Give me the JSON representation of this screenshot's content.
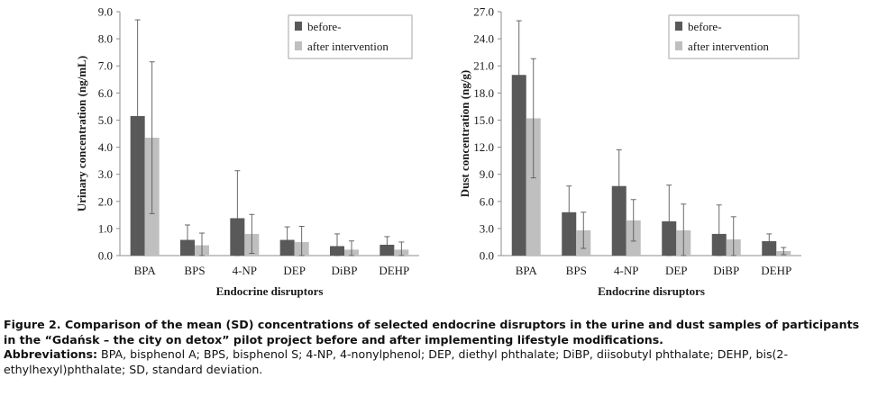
{
  "caption": {
    "title": "Figure 2. Comparison of the mean (SD) concentrations of selected endocrine disruptors in the urine and dust samples of participants in the “Gdańsk – the city on detox” pilot project before and after implementing lifestyle modifications.",
    "abbreviations_label": "Abbreviations:",
    "abbreviations_text": " BPA, bisphenol A; BPS, bisphenol S; 4-NP, 4-nonylphenol; DEP, diethyl phthalate; DiBP, diisobutyl phthalate; DEHP, bis(2-ethylhexyl)phthalate; SD, standard deviation."
  },
  "colors": {
    "before": "#595959",
    "after": "#bfbfbf",
    "error": "#595959",
    "axis": "#8c8c8c"
  },
  "chart_data": [
    {
      "type": "bar",
      "ylabel": "Urinary concentration (ng/mL)",
      "xlabel": "Endocrine disruptors",
      "ylim": [
        0,
        9
      ],
      "yticks": [
        "0.0",
        "1.0",
        "2.0",
        "3.0",
        "4.0",
        "5.0",
        "6.0",
        "7.0",
        "8.0",
        "9.0"
      ],
      "grid": false,
      "legend_position": "top-right",
      "categories": [
        "BPA",
        "BPS",
        "4-NP",
        "DEP",
        "DiBP",
        "DEHP"
      ],
      "series": [
        {
          "name": "before-",
          "values": [
            5.15,
            0.58,
            1.38,
            0.58,
            0.35,
            0.4
          ],
          "sd": [
            3.55,
            0.55,
            1.75,
            0.48,
            0.45,
            0.3
          ]
        },
        {
          "name": "after intervention",
          "values": [
            4.35,
            0.38,
            0.8,
            0.5,
            0.22,
            0.22
          ],
          "sd": [
            2.8,
            0.45,
            0.72,
            0.58,
            0.32,
            0.28
          ]
        }
      ]
    },
    {
      "type": "bar",
      "ylabel": "Dust concentration (ng/g)",
      "xlabel": "Endocrine disruptors",
      "ylim": [
        0,
        27
      ],
      "yticks": [
        "0.0",
        "3.0",
        "6.0",
        "9.0",
        "12.0",
        "15.0",
        "18.0",
        "21.0",
        "24.0",
        "27.0"
      ],
      "grid": false,
      "legend_position": "top-right",
      "categories": [
        "BPA",
        "BPS",
        "4-NP",
        "DEP",
        "DiBP",
        "DEHP"
      ],
      "series": [
        {
          "name": "before-",
          "values": [
            20.0,
            4.8,
            7.7,
            3.8,
            2.4,
            1.6
          ],
          "sd": [
            6.0,
            2.9,
            4.0,
            4.0,
            3.2,
            0.8
          ]
        },
        {
          "name": "after intervention",
          "values": [
            15.2,
            2.8,
            3.9,
            2.8,
            1.8,
            0.5
          ],
          "sd": [
            6.6,
            2.0,
            2.3,
            2.9,
            2.5,
            0.4
          ]
        }
      ]
    }
  ]
}
